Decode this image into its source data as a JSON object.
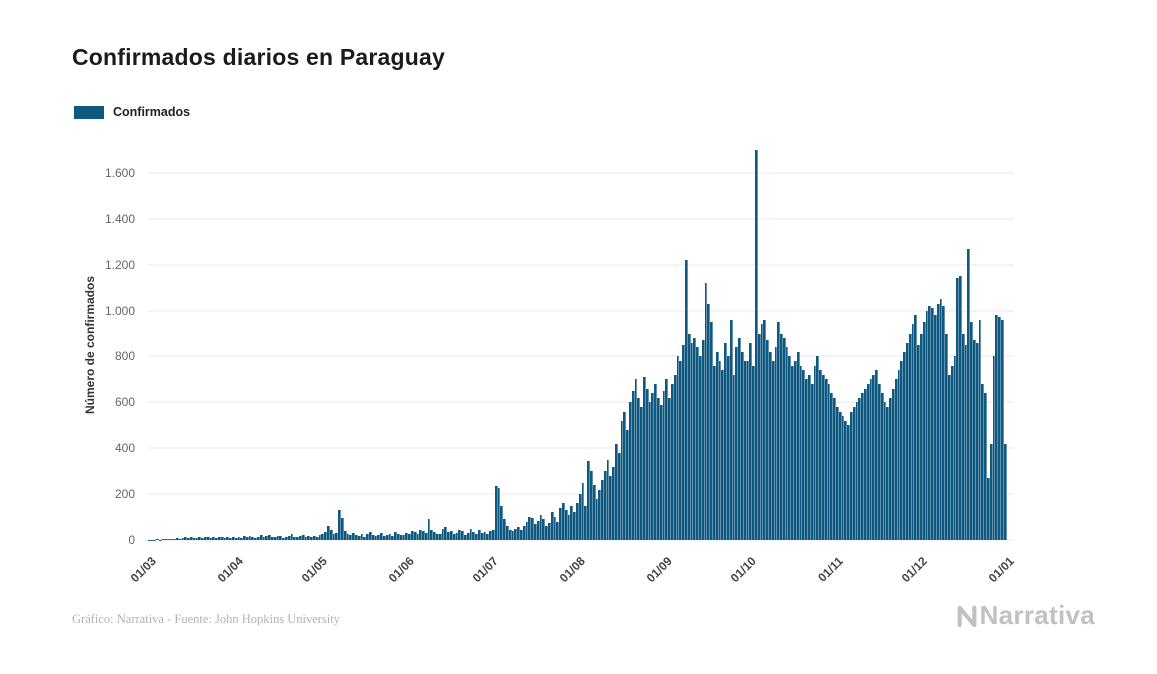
{
  "colors": {
    "bar": "#0F5880",
    "grid": "#e9e9e9",
    "axis_text": "#444444"
  },
  "footer": {
    "credit": "Gráfico: Narrativa - Fuente: John Hopkins University",
    "logo_text": "Narrativa"
  },
  "chart_data": {
    "type": "bar",
    "title": "Confirmados diarios en Paraguay",
    "series_name": "Confirmados",
    "xlabel": "",
    "ylabel": "Número de confirmados",
    "ylim": [
      0,
      1700
    ],
    "grid": true,
    "legend_position": "top-left",
    "y_tick_values": [
      0,
      200,
      400,
      600,
      800,
      1000,
      1200,
      1400,
      1600
    ],
    "y_tick_labels": [
      "0",
      "200",
      "400",
      "600",
      "800",
      "1.000",
      "1.200",
      "1.400",
      "1.600"
    ],
    "x_tick_labels": [
      "01/03",
      "01/04",
      "01/05",
      "01/06",
      "01/07",
      "01/08",
      "01/09",
      "01/10",
      "01/11",
      "01/12",
      "01/01"
    ],
    "x_tick_indices": [
      0,
      31,
      61,
      92,
      122,
      153,
      184,
      214,
      245,
      275,
      306
    ],
    "values": [
      1,
      2,
      1,
      3,
      2,
      4,
      3,
      5,
      4,
      6,
      8,
      5,
      9,
      11,
      7,
      13,
      9,
      8,
      12,
      10,
      15,
      11,
      9,
      13,
      8,
      12,
      14,
      10,
      11,
      9,
      12,
      10,
      14,
      9,
      16,
      12,
      18,
      13,
      10,
      15,
      20,
      11,
      17,
      22,
      14,
      12,
      19,
      16,
      10,
      13,
      18,
      25,
      15,
      12,
      17,
      21,
      14,
      16,
      11,
      19,
      13,
      20,
      28,
      35,
      60,
      45,
      25,
      30,
      130,
      95,
      40,
      25,
      20,
      30,
      22,
      18,
      25,
      15,
      28,
      35,
      20,
      16,
      24,
      30,
      18,
      22,
      26,
      19,
      33,
      27,
      21,
      24,
      30,
      25,
      40,
      35,
      28,
      45,
      38,
      30,
      90,
      42,
      36,
      28,
      26,
      50,
      55,
      33,
      40,
      26,
      30,
      45,
      38,
      24,
      32,
      48,
      36,
      28,
      42,
      30,
      35,
      27,
      40,
      45,
      235,
      225,
      150,
      90,
      60,
      45,
      40,
      50,
      55,
      45,
      60,
      80,
      100,
      95,
      70,
      85,
      110,
      90,
      60,
      75,
      120,
      100,
      80,
      140,
      160,
      130,
      110,
      150,
      120,
      160,
      200,
      250,
      150,
      345,
      300,
      240,
      180,
      220,
      260,
      300,
      350,
      280,
      320,
      420,
      380,
      520,
      560,
      480,
      600,
      650,
      700,
      620,
      580,
      710,
      660,
      600,
      640,
      680,
      620,
      590,
      650,
      700,
      620,
      680,
      720,
      800,
      780,
      850,
      1220,
      900,
      860,
      880,
      840,
      800,
      870,
      1120,
      1030,
      950,
      760,
      820,
      780,
      740,
      860,
      800,
      960,
      720,
      840,
      880,
      820,
      780,
      780,
      860,
      760,
      1700,
      900,
      940,
      960,
      870,
      820,
      780,
      840,
      950,
      900,
      880,
      840,
      800,
      760,
      780,
      820,
      760,
      740,
      700,
      720,
      680,
      760,
      800,
      740,
      720,
      700,
      680,
      640,
      620,
      580,
      560,
      540,
      520,
      500,
      560,
      580,
      600,
      620,
      640,
      660,
      680,
      700,
      720,
      740,
      680,
      640,
      600,
      580,
      620,
      660,
      700,
      740,
      780,
      820,
      860,
      900,
      940,
      980,
      850,
      900,
      950,
      1000,
      1020,
      1010,
      980,
      1030,
      1050,
      1020,
      900,
      720,
      760,
      800,
      1140,
      1150,
      900,
      850,
      1270,
      950,
      870,
      860,
      960,
      680,
      640,
      270,
      420,
      800,
      980,
      970,
      960,
      420
    ]
  }
}
